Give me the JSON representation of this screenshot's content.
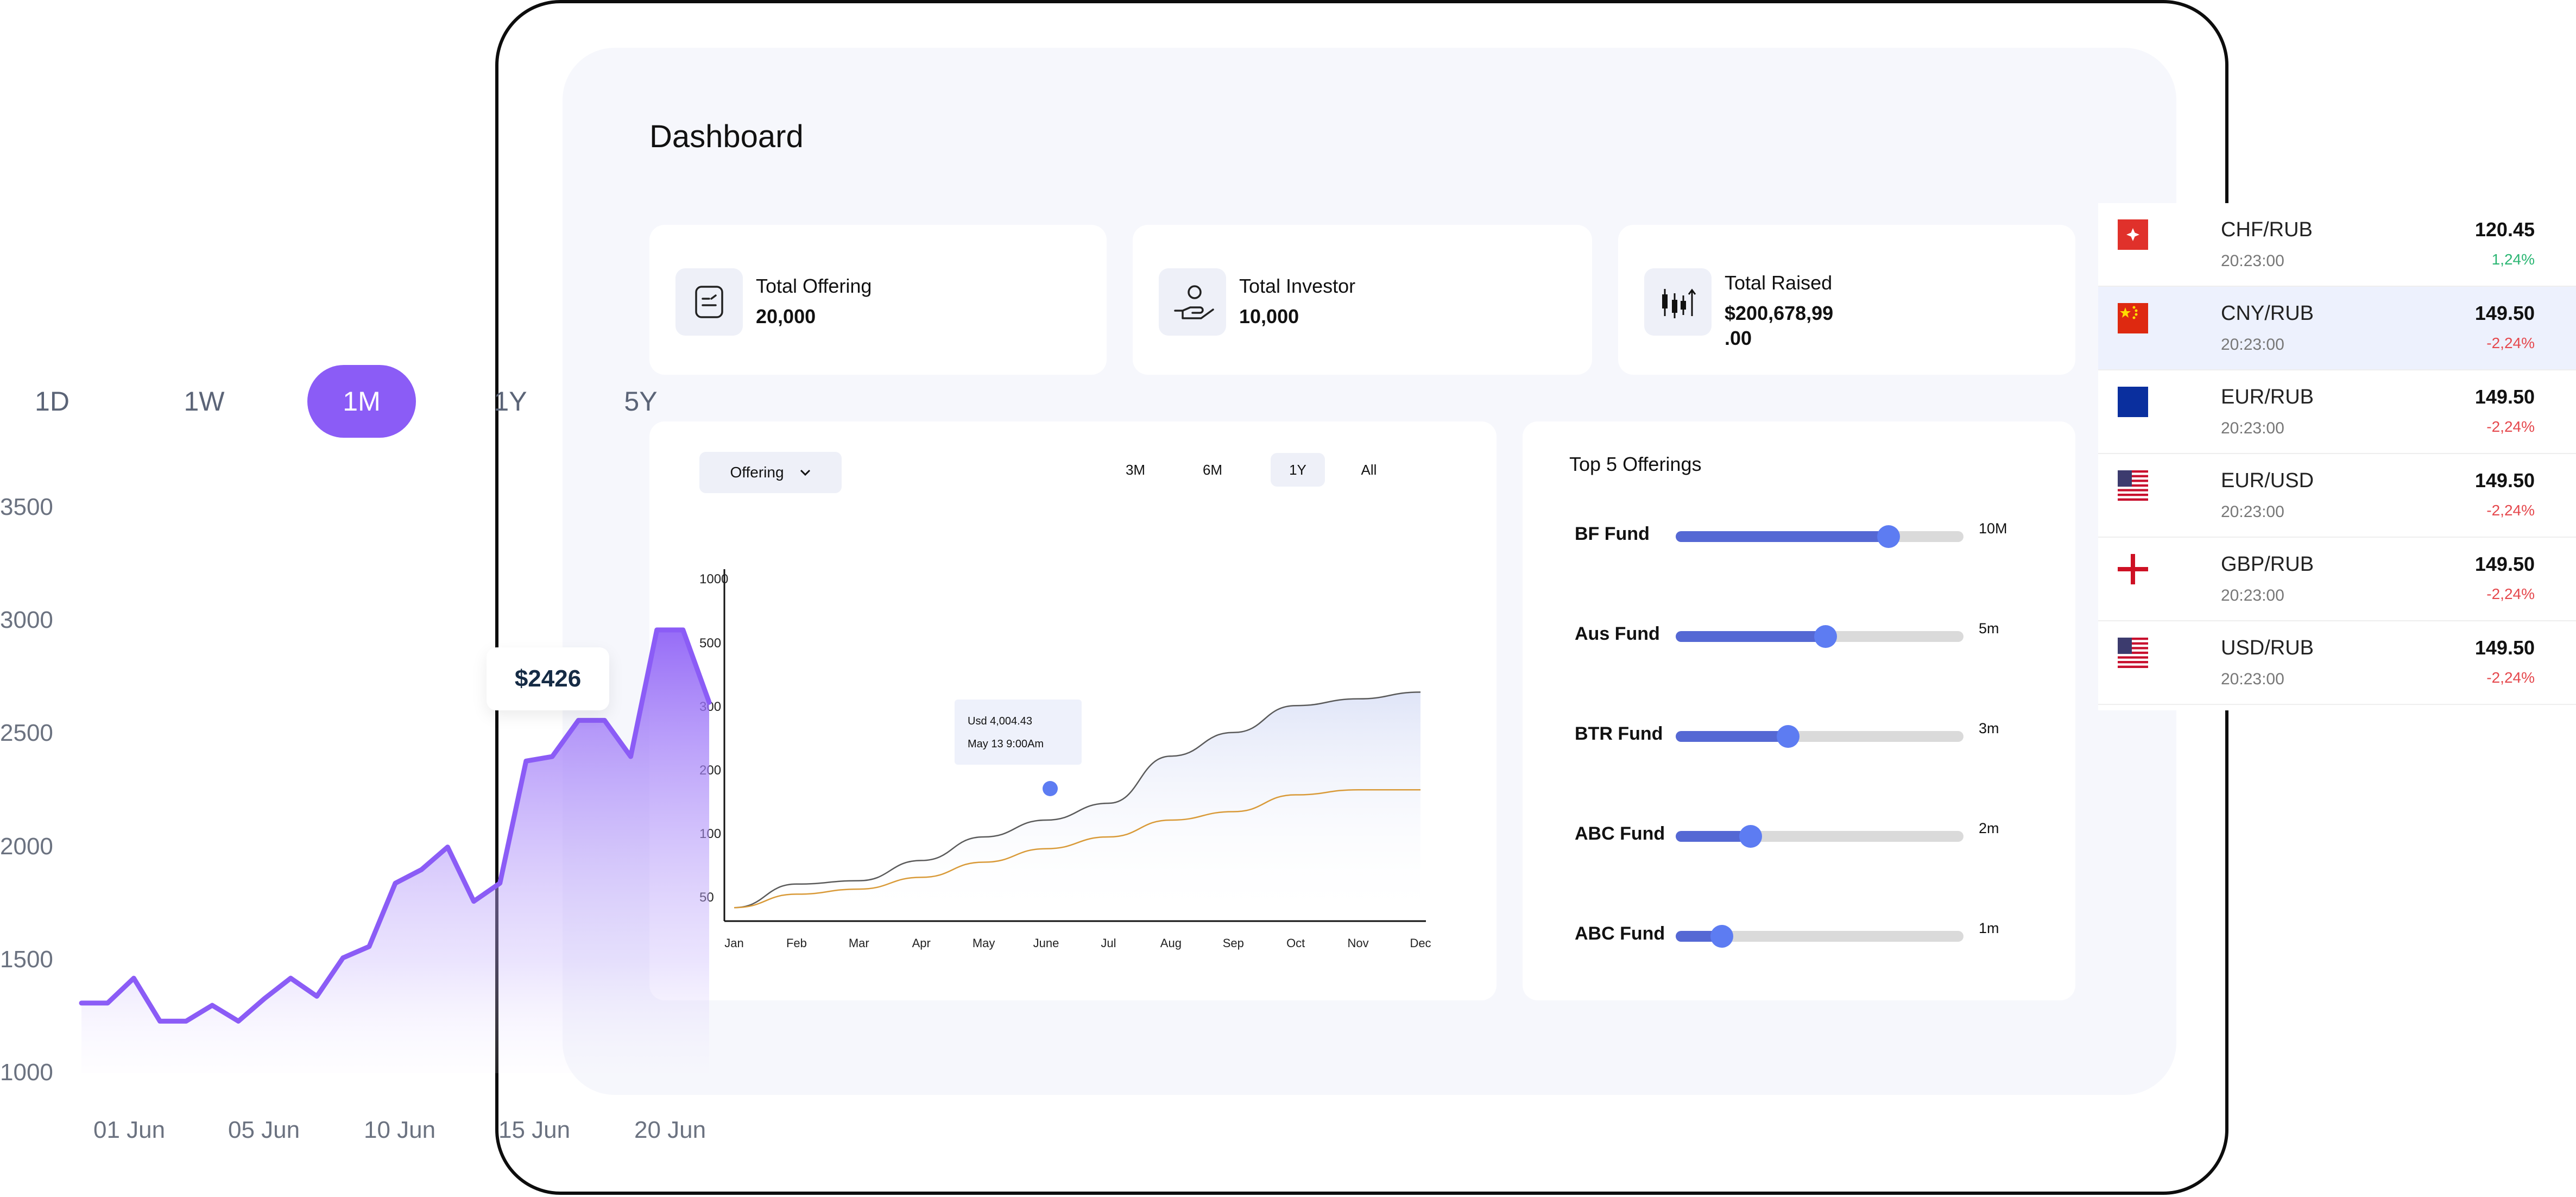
{
  "dashboard": {
    "title": "Dashboard"
  },
  "stats": [
    {
      "label": "Total Offering",
      "value": "20,000",
      "icon": "document-icon"
    },
    {
      "label": "Total Investor",
      "value": "10,000",
      "icon": "hand-user-icon"
    },
    {
      "label": "Total Raised",
      "value": "$200,678,99 .00",
      "icon": "candlestick-icon"
    }
  ],
  "offering_chart": {
    "dropdown_label": "Offering",
    "ranges": [
      "3M",
      "6M",
      "1Y",
      "All"
    ],
    "active_range": "1Y",
    "tooltip": {
      "value": "Usd 4,004.43",
      "time": "May 13 9:00Am"
    }
  },
  "chart_data": [
    {
      "type": "line",
      "title": "",
      "categories": [
        "Jan",
        "Feb",
        "Mar",
        "Apr",
        "May",
        "June",
        "Jul",
        "Aug",
        "Sep",
        "Oct",
        "Nov",
        "Dec"
      ],
      "y_ticks": [
        50,
        100,
        200,
        300,
        500,
        1000
      ],
      "series": [
        {
          "name": "",
          "color": "#5a5a5a",
          "values": [
            40,
            110,
            120,
            180,
            250,
            300,
            350,
            490,
            560,
            640,
            660,
            680
          ]
        },
        {
          "name": "",
          "color": "#d99a38",
          "values": [
            40,
            80,
            95,
            130,
            175,
            215,
            250,
            300,
            325,
            375,
            390,
            390
          ]
        }
      ],
      "grid": false,
      "legend": "none"
    },
    {
      "type": "area",
      "title": "",
      "x_ticks": [
        "01 Jun",
        "05 Jun",
        "10 Jun",
        "15 Jun",
        "20 Jun"
      ],
      "y_ticks": [
        1000,
        1500,
        2000,
        2500,
        3000,
        3500
      ],
      "ylim": [
        1000,
        3500
      ],
      "periods": [
        "1D",
        "1W",
        "1M",
        "1Y",
        "5Y"
      ],
      "active_period": "1M",
      "highlight_label": "$2426",
      "color": "#8b5cf6",
      "x": [
        0,
        1,
        2,
        3,
        4,
        5,
        6,
        7,
        8,
        9,
        10,
        11,
        12,
        13,
        14,
        15,
        16,
        17,
        18,
        19,
        20,
        21,
        22,
        23,
        24
      ],
      "values": [
        1310,
        1310,
        1420,
        1230,
        1230,
        1300,
        1230,
        1330,
        1420,
        1340,
        1510,
        1560,
        1840,
        1900,
        2000,
        1760,
        1840,
        2380,
        2400,
        2560,
        2560,
        2400,
        2960,
        2960,
        2640
      ],
      "grid": false,
      "legend": "none"
    }
  ],
  "top_offerings": {
    "title": "Top 5 Offerings",
    "funds": [
      {
        "name": "BF Fund",
        "amount": "10M",
        "level": 0.74
      },
      {
        "name": "Aus Fund",
        "amount": "5m",
        "level": 0.52
      },
      {
        "name": "BTR Fund",
        "amount": "3m",
        "level": 0.39
      },
      {
        "name": "ABC Fund",
        "amount": "2m",
        "level": 0.26
      },
      {
        "name": "ABC Fund",
        "amount": "1m",
        "level": 0.16
      }
    ]
  },
  "fx_rates": [
    {
      "pair": "CHF/RUB",
      "time": "20:23:00",
      "price": "120.45",
      "change": "1,24%",
      "direction": "up",
      "flag": "swiss-flag-icon",
      "highlighted": false
    },
    {
      "pair": "CNY/RUB",
      "time": "20:23:00",
      "price": "149.50",
      "change": "-2,24%",
      "direction": "down",
      "flag": "china-flag-icon",
      "highlighted": true
    },
    {
      "pair": "EUR/RUB",
      "time": "20:23:00",
      "price": "149.50",
      "change": "-2,24%",
      "direction": "down",
      "flag": "eu-flag-icon",
      "highlighted": false
    },
    {
      "pair": "EUR/USD",
      "time": "20:23:00",
      "price": "149.50",
      "change": "-2,24%",
      "direction": "down",
      "flag": "usa-flag-icon",
      "highlighted": false
    },
    {
      "pair": "GBP/RUB",
      "time": "20:23:00",
      "price": "149.50",
      "change": "-2,24%",
      "direction": "down",
      "flag": "england-flag-icon",
      "highlighted": false
    },
    {
      "pair": "USD/RUB",
      "time": "20:23:00",
      "price": "149.50",
      "change": "-2,24%",
      "direction": "down",
      "flag": "usa-flag-icon",
      "highlighted": false
    }
  ],
  "colors": {
    "accent": "#8b5cf6",
    "bar": "#5568d4",
    "knob": "#5d7cf2",
    "up": "#2bb673",
    "down": "#e5484d"
  }
}
